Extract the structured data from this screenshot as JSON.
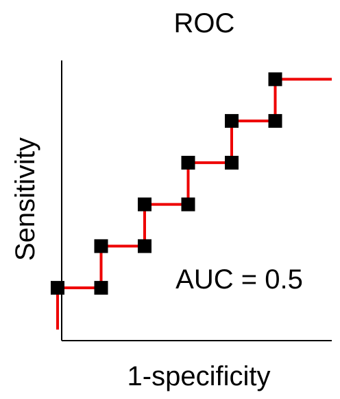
{
  "chart_data": {
    "type": "line",
    "title": "ROC",
    "xlabel": "1-specificity",
    "ylabel": "Sensitivity",
    "annotation": "AUC = 0.5",
    "xlim": [
      0,
      6.3
    ],
    "ylim": [
      -1.2,
      5.5
    ],
    "grid": false,
    "legend": "none",
    "colors": {
      "line": "#ee0000",
      "marker": "#000000",
      "axis": "#000000"
    },
    "series": [
      {
        "values_x": [
          0,
          0,
          1,
          1,
          2,
          2,
          3,
          3,
          4,
          4,
          5,
          5,
          6.3
        ],
        "values_y": [
          -1,
          0,
          0,
          1,
          1,
          2,
          2,
          3,
          3,
          4,
          4,
          5,
          5
        ],
        "markers": [
          [
            0,
            0
          ],
          [
            1,
            0
          ],
          [
            1,
            1
          ],
          [
            2,
            1
          ],
          [
            2,
            2
          ],
          [
            3,
            2
          ],
          [
            3,
            3
          ],
          [
            4,
            3
          ],
          [
            4,
            4
          ],
          [
            5,
            4
          ],
          [
            5,
            5
          ]
        ]
      }
    ]
  }
}
